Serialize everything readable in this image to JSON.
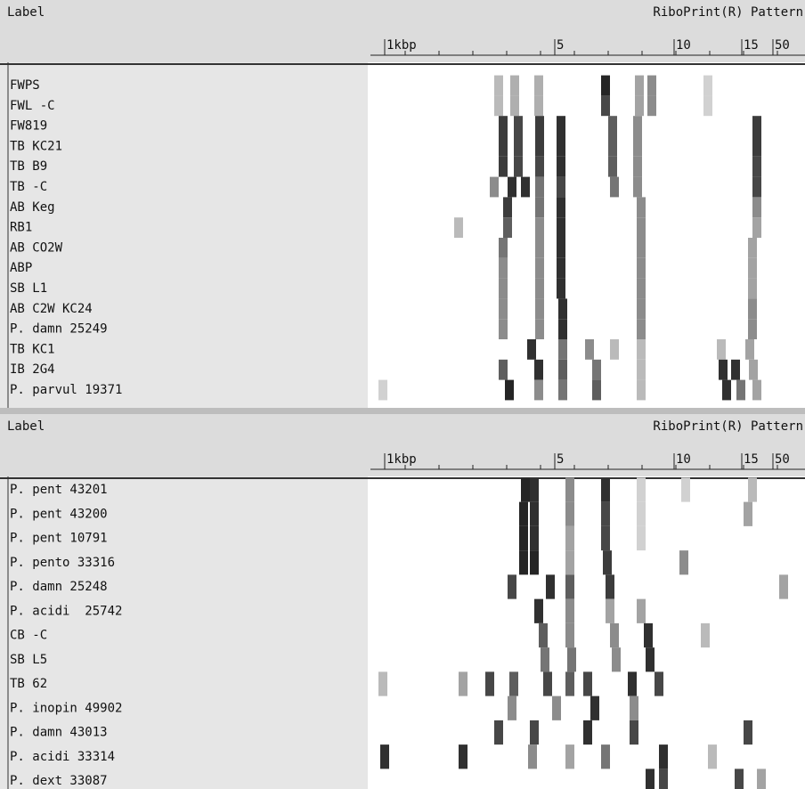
{
  "panels": [
    {
      "header": {
        "label": "Label",
        "pattern": "RiboPrint(R) Pattern",
        "scale": [
          "1kbp",
          "5",
          "10",
          "15",
          "50"
        ]
      },
      "rows": [
        "FWPS",
        "FWL -C",
        "FW819",
        "TB KC21",
        "TB B9",
        "TB -C",
        "AB Keg",
        "RB1",
        "AB CO2W",
        "ABP",
        "SB L1",
        "AB C2W KC24",
        "P. damn 25249",
        "TB KC1",
        "IB 2G4",
        "P. parvul 19371"
      ]
    },
    {
      "header": {
        "label": "Label",
        "pattern": "RiboPrint(R) Pattern",
        "scale": [
          "1kbp",
          "5",
          "10",
          "15",
          "50"
        ]
      },
      "rows": [
        "P. pent 43201",
        "P. pent 43200",
        "P. pent 10791",
        "P. pento 33316",
        "P. damn 25248",
        "P. acidi  25742",
        "CB -C",
        "SB L5",
        "TB 62",
        "P. inopin 49902",
        "P. damn 43013",
        "P. acidi 33314",
        "P. dext 33087"
      ]
    }
  ]
}
